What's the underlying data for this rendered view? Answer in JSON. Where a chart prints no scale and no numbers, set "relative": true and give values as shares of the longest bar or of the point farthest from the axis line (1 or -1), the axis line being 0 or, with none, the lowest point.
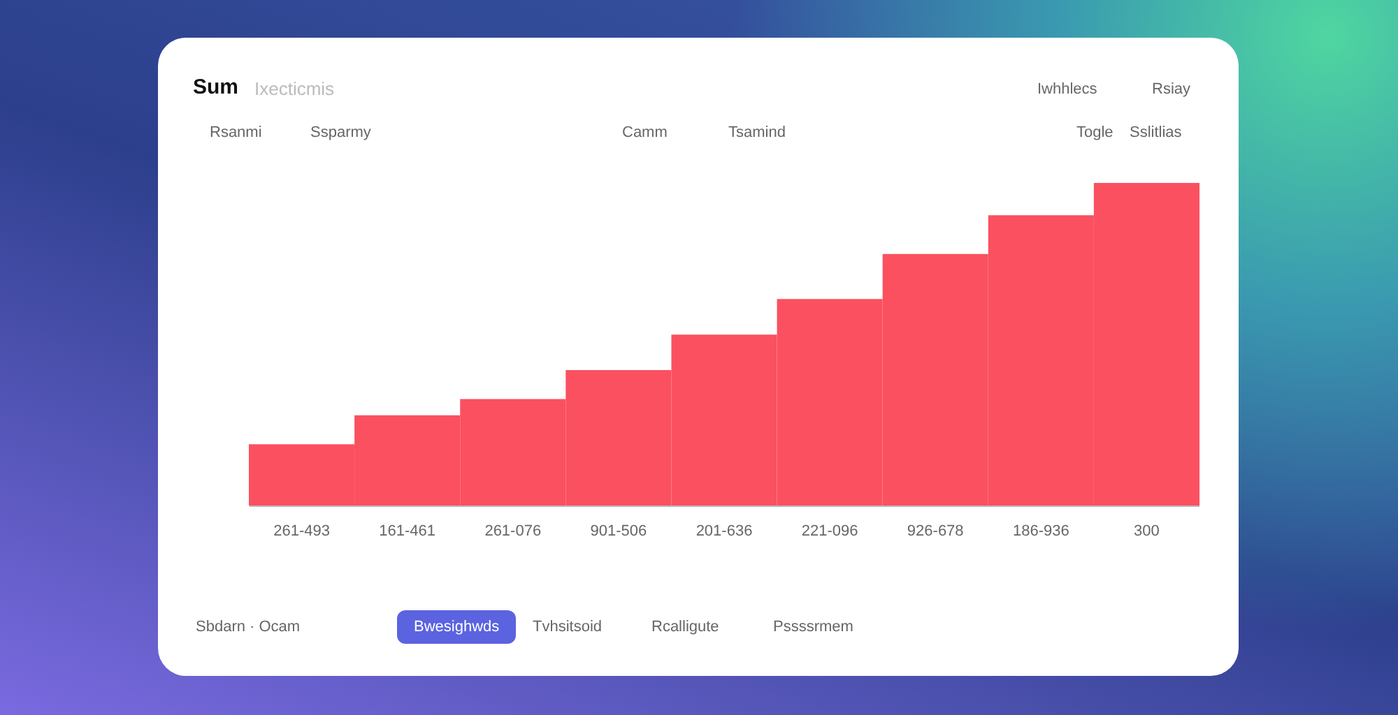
{
  "chart_data": {
    "type": "bar",
    "title": "Sum",
    "subtitle": "Ixecticmis",
    "relative": true,
    "categories": [
      "261-493",
      "161-461",
      "261-076",
      "901-506",
      "201-636",
      "221-096",
      "926-678",
      "186-936",
      "300"
    ],
    "series": [
      {
        "color": "#fb5060",
        "values": [
          0.19,
          0.28,
          0.33,
          0.42,
          0.53,
          0.64,
          0.78,
          0.9,
          1
        ]
      }
    ],
    "annotations": [
      "Rsanmi",
      "Ssparmy",
      "Camm",
      "Tsamind",
      "Iwhhlecs",
      "Rsiay",
      "Togle",
      "Sslitlias",
      "Sbdarn · Ocam",
      "Bwesighwds",
      "Tvhsitsoid",
      "Rcalligute",
      "Pssssrmem"
    ]
  }
}
